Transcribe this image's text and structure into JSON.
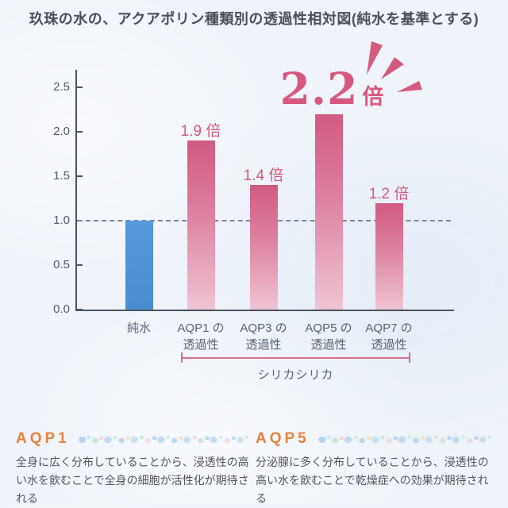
{
  "title": "玖珠の水の、アクアポリン種類別の透過性相対図(純水を基準とする)",
  "chart_data": {
    "type": "bar",
    "title": "玖珠の水の、アクアポリン種類別の透過性相対図(純水を基準とする)",
    "xlabel": "",
    "ylabel": "",
    "ylim": [
      0,
      2.7
    ],
    "yticks": [
      "0.0",
      "0.5",
      "1.0",
      "1.5",
      "2.0",
      "2.5"
    ],
    "grid": "off",
    "baseline": 1.0,
    "bars": [
      {
        "category_lines": [
          "純水"
        ],
        "value": 1.0,
        "color": "blue",
        "annotation": ""
      },
      {
        "category_lines": [
          "AQP1 の",
          "透過性"
        ],
        "value": 1.9,
        "color": "pink",
        "annotation": "1.9 倍"
      },
      {
        "category_lines": [
          "AQP3 の",
          "透過性"
        ],
        "value": 1.4,
        "color": "pink",
        "annotation": "1.4 倍"
      },
      {
        "category_lines": [
          "AQP5 の",
          "透過性"
        ],
        "value": 2.2,
        "color": "pink",
        "annotation": ""
      },
      {
        "category_lines": [
          "AQP7 の",
          "透過性"
        ],
        "value": 1.2,
        "color": "pink",
        "annotation": "1.2 倍"
      }
    ],
    "highlight": {
      "value": "2.2",
      "unit": "倍",
      "applies_to": "AQP5 の透過性"
    },
    "bracket_label": "シリカシリカ",
    "bracket_span": [
      "AQP1 の透過性",
      "AQP7 の透過性"
    ]
  },
  "sections": [
    {
      "heading": "AQP1",
      "body": "全身に広く分布していることから、浸透性の高い水を飲むことで全身の細胞が活性化が期待される"
    },
    {
      "heading": "AQP5",
      "body": "分泌腺に多く分布していることから、浸透性の高い水を飲むことで乾燥症への効果が期待される"
    }
  ],
  "colors": {
    "accent_pink": "#d6587f",
    "bar_pink_top": "#d15a81",
    "bar_pink_bottom": "#efc4d3",
    "bar_blue": "#4f96d6",
    "bracket_pink": "#d6708d",
    "heading_orange": "#e8813c",
    "axis": "#4d5360",
    "baseline_dash": "#7b8494",
    "body_text": "#54545d"
  },
  "icons": {
    "burst": "emphasis-burst-icon",
    "bubbles": "bubble-chain-decoration-icon"
  }
}
